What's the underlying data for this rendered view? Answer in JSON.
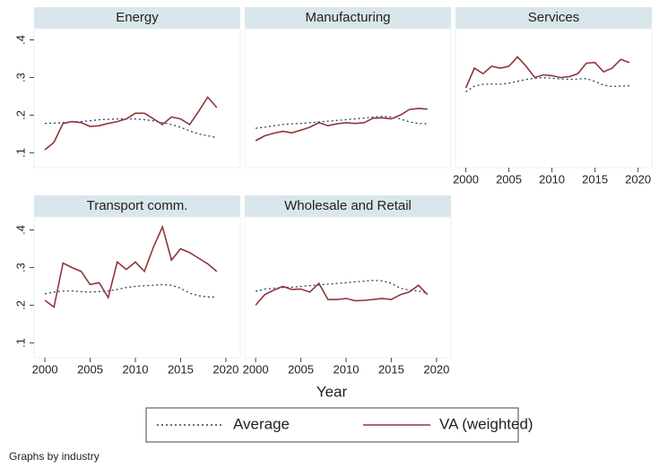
{
  "chart_data": [
    {
      "type": "line",
      "title": "Energy",
      "x": [
        2000,
        2001,
        2002,
        2003,
        2004,
        2005,
        2006,
        2007,
        2008,
        2009,
        2010,
        2011,
        2012,
        2013,
        2014,
        2015,
        2016,
        2017,
        2018,
        2019
      ],
      "series": [
        {
          "name": "Average",
          "color": "#1a476f",
          "dash": true,
          "values": [
            0.178,
            0.179,
            0.18,
            0.182,
            0.183,
            0.185,
            0.188,
            0.189,
            0.19,
            0.19,
            0.19,
            0.188,
            0.185,
            0.18,
            0.175,
            0.168,
            0.158,
            0.15,
            0.145,
            0.14
          ]
        },
        {
          "name": "VA (weighted)",
          "color": "#90353b",
          "dash": false,
          "values": [
            0.108,
            0.128,
            0.178,
            0.183,
            0.18,
            0.17,
            0.172,
            0.178,
            0.183,
            0.19,
            0.205,
            0.205,
            0.19,
            0.175,
            0.195,
            0.19,
            0.175,
            0.21,
            0.248,
            0.22
          ]
        }
      ],
      "xlim": [
        1998.8,
        2021.6
      ],
      "ylim": [
        0.07,
        0.425
      ],
      "yticks": [
        {
          "value": 0.1,
          "label": ".1"
        },
        {
          "value": 0.2,
          "label": ".2"
        },
        {
          "value": 0.3,
          "label": ".3"
        },
        {
          "value": 0.4,
          "label": ".4"
        }
      ]
    },
    {
      "type": "line",
      "title": "Manufacturing",
      "x": [
        2000,
        2001,
        2002,
        2003,
        2004,
        2005,
        2006,
        2007,
        2008,
        2009,
        2010,
        2011,
        2012,
        2013,
        2014,
        2015,
        2016,
        2017,
        2018,
        2019
      ],
      "series": [
        {
          "name": "Average",
          "color": "#1a476f",
          "dash": true,
          "values": [
            0.165,
            0.168,
            0.172,
            0.175,
            0.177,
            0.178,
            0.18,
            0.182,
            0.184,
            0.186,
            0.188,
            0.19,
            0.192,
            0.195,
            0.197,
            0.195,
            0.19,
            0.182,
            0.178,
            0.177
          ]
        },
        {
          "name": "VA (weighted)",
          "color": "#90353b",
          "dash": false,
          "values": [
            0.132,
            0.145,
            0.152,
            0.157,
            0.153,
            0.16,
            0.168,
            0.18,
            0.172,
            0.177,
            0.18,
            0.178,
            0.18,
            0.192,
            0.193,
            0.19,
            0.2,
            0.215,
            0.218,
            0.216
          ]
        }
      ],
      "xlim": [
        1998.8,
        2021.6
      ],
      "ylim": [
        0.07,
        0.425
      ]
    },
    {
      "type": "line",
      "title": "Services",
      "x": [
        2000,
        2001,
        2002,
        2003,
        2004,
        2005,
        2006,
        2007,
        2008,
        2009,
        2010,
        2011,
        2012,
        2013,
        2014,
        2015,
        2016,
        2017,
        2018,
        2019
      ],
      "series": [
        {
          "name": "Average",
          "color": "#1a476f",
          "dash": true,
          "values": [
            0.262,
            0.277,
            0.282,
            0.283,
            0.282,
            0.285,
            0.29,
            0.295,
            0.298,
            0.3,
            0.298,
            0.296,
            0.295,
            0.296,
            0.297,
            0.29,
            0.28,
            0.276,
            0.277,
            0.278
          ]
        },
        {
          "name": "VA (weighted)",
          "color": "#90353b",
          "dash": false,
          "values": [
            0.272,
            0.325,
            0.31,
            0.33,
            0.325,
            0.33,
            0.355,
            0.33,
            0.3,
            0.307,
            0.305,
            0.3,
            0.302,
            0.31,
            0.338,
            0.34,
            0.315,
            0.325,
            0.348,
            0.34
          ]
        }
      ],
      "xlim": [
        1998.8,
        2021.6
      ],
      "ylim": [
        0.07,
        0.425
      ],
      "xticks": [
        2000,
        2005,
        2010,
        2015,
        2020
      ]
    },
    {
      "type": "line",
      "title": "Transport comm.",
      "x": [
        2000,
        2001,
        2002,
        2003,
        2004,
        2005,
        2006,
        2007,
        2008,
        2009,
        2010,
        2011,
        2012,
        2013,
        2014,
        2015,
        2016,
        2017,
        2018,
        2019
      ],
      "series": [
        {
          "name": "Average",
          "color": "#1a476f",
          "dash": true,
          "values": [
            0.23,
            0.235,
            0.238,
            0.238,
            0.236,
            0.235,
            0.236,
            0.238,
            0.242,
            0.247,
            0.25,
            0.252,
            0.253,
            0.255,
            0.253,
            0.245,
            0.232,
            0.225,
            0.222,
            0.222
          ]
        },
        {
          "name": "VA (weighted)",
          "color": "#90353b",
          "dash": false,
          "values": [
            0.213,
            0.195,
            0.312,
            0.3,
            0.29,
            0.255,
            0.26,
            0.22,
            0.315,
            0.295,
            0.315,
            0.29,
            0.355,
            0.408,
            0.32,
            0.35,
            0.34,
            0.325,
            0.31,
            0.29
          ]
        }
      ],
      "xlim": [
        1998.8,
        2021.6
      ],
      "ylim": [
        0.07,
        0.425
      ],
      "xticks": [
        2000,
        2005,
        2010,
        2015,
        2020
      ],
      "yticks": [
        {
          "value": 0.1,
          "label": ".1"
        },
        {
          "value": 0.2,
          "label": ".2"
        },
        {
          "value": 0.3,
          "label": ".3"
        },
        {
          "value": 0.4,
          "label": ".4"
        }
      ]
    },
    {
      "type": "line",
      "title": "Wholesale and Retail",
      "x": [
        2000,
        2001,
        2002,
        2003,
        2004,
        2005,
        2006,
        2007,
        2008,
        2009,
        2010,
        2011,
        2012,
        2013,
        2014,
        2015,
        2016,
        2017,
        2018,
        2019
      ],
      "series": [
        {
          "name": "Average",
          "color": "#1a476f",
          "dash": true,
          "values": [
            0.237,
            0.243,
            0.245,
            0.247,
            0.248,
            0.25,
            0.252,
            0.254,
            0.256,
            0.258,
            0.26,
            0.262,
            0.264,
            0.266,
            0.265,
            0.258,
            0.245,
            0.24,
            0.238,
            0.232
          ]
        },
        {
          "name": "VA (weighted)",
          "color": "#90353b",
          "dash": false,
          "values": [
            0.2,
            0.228,
            0.24,
            0.25,
            0.242,
            0.243,
            0.235,
            0.258,
            0.215,
            0.215,
            0.218,
            0.212,
            0.213,
            0.215,
            0.218,
            0.215,
            0.228,
            0.235,
            0.253,
            0.228
          ]
        }
      ],
      "xlim": [
        1998.8,
        2021.6
      ],
      "ylim": [
        0.07,
        0.425
      ],
      "xticks": [
        2000,
        2005,
        2010,
        2015,
        2020
      ]
    }
  ],
  "figure": {
    "xlabel": "Year",
    "note": "Graphs by industry"
  }
}
